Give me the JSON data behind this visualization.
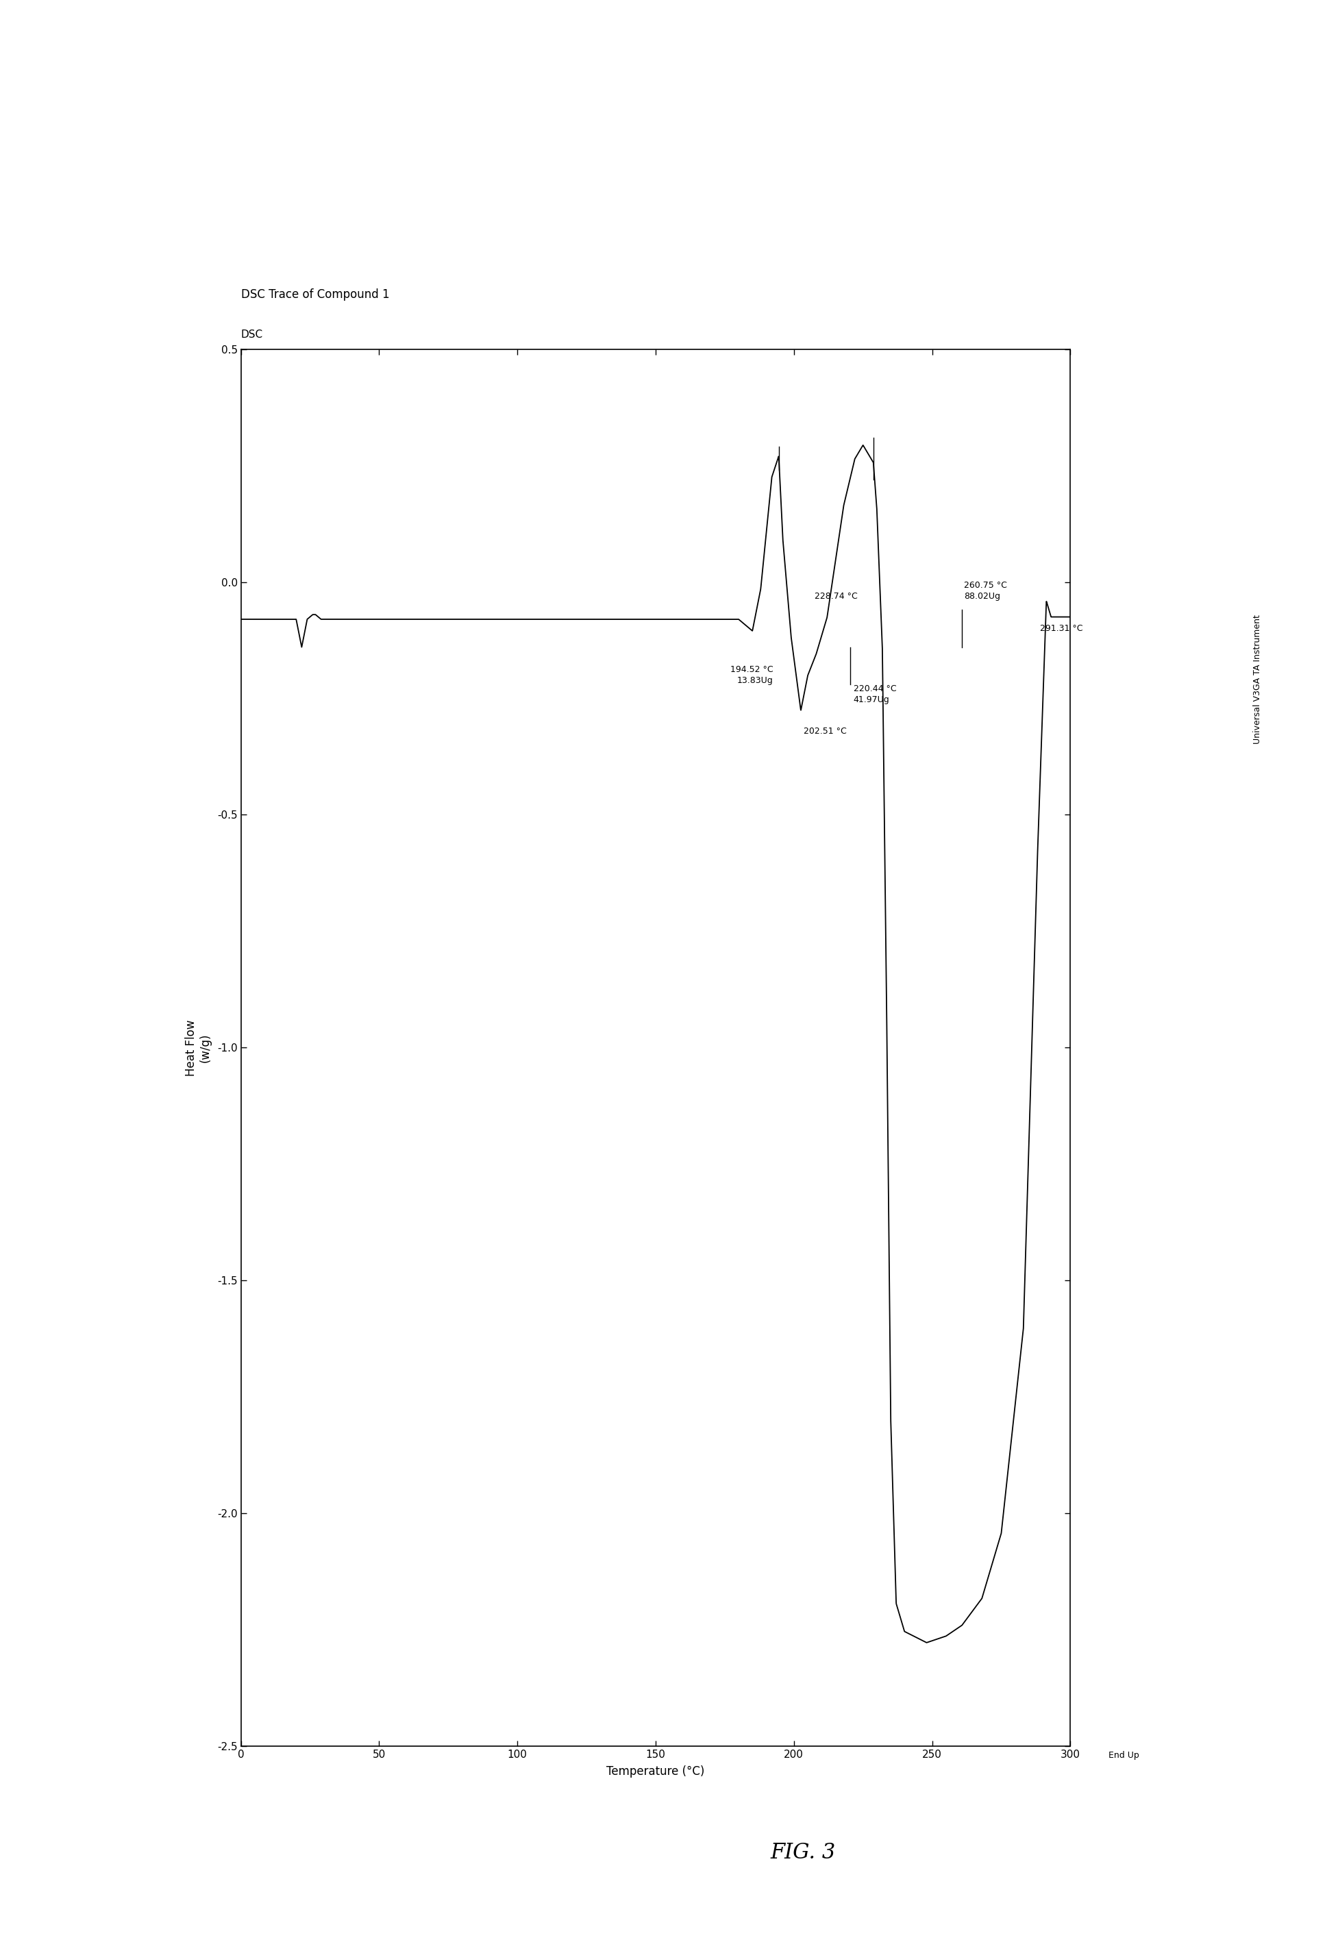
{
  "title": "DSC Trace of Compound 1",
  "ylabel_top": "DSC",
  "xlabel": "Temperature (°C)",
  "ylabel": "Heat Flow\n(w/g)",
  "fig_label": "FIG. 3",
  "watermark": "Universal V3GA TA Instrument",
  "end_up": "End Up",
  "xlim": [
    0,
    300
  ],
  "ylim": [
    -2.5,
    0.5
  ],
  "xticks": [
    0,
    50,
    100,
    150,
    200,
    250,
    300
  ],
  "yticks": [
    0.5,
    0.0,
    -0.5,
    -1.0,
    -1.5,
    -2.0,
    -2.5
  ],
  "ytick_labels": [
    "0.5",
    "0.0",
    "-0.5",
    "-1.0",
    "-1.5",
    "-2.0",
    "-2.5"
  ],
  "line_color": "#000000",
  "background_color": "#ffffff",
  "font_size": 11,
  "title_font_size": 12,
  "anno_fontsize": 9
}
